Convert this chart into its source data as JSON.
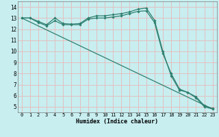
{
  "title": "",
  "xlabel": "Humidex (Indice chaleur)",
  "bg_color": "#c8eef0",
  "grid_color": "#aadddd",
  "line_color": "#2d7f6e",
  "xlim": [
    -0.5,
    23.5
  ],
  "ylim": [
    4.5,
    14.5
  ],
  "xticks": [
    0,
    1,
    2,
    3,
    4,
    5,
    6,
    7,
    8,
    9,
    10,
    11,
    12,
    13,
    14,
    15,
    16,
    17,
    18,
    19,
    20,
    21,
    22,
    23
  ],
  "yticks": [
    5,
    6,
    7,
    8,
    9,
    10,
    11,
    12,
    13,
    14
  ],
  "line1_x": [
    0,
    1,
    2,
    3,
    4,
    5,
    6,
    7,
    8,
    9,
    10,
    11,
    12,
    13,
    14,
    15,
    16,
    17,
    18,
    19,
    20,
    21,
    22,
    23
  ],
  "line1_y": [
    13.0,
    13.0,
    12.7,
    12.4,
    13.0,
    12.5,
    12.45,
    12.5,
    13.0,
    13.2,
    13.2,
    13.3,
    13.4,
    13.55,
    13.8,
    13.9,
    12.8,
    10.0,
    7.8,
    6.5,
    6.3,
    5.8,
    5.0,
    4.8
  ],
  "line2_x": [
    0,
    1,
    2,
    3,
    4,
    5,
    6,
    7,
    8,
    9,
    10,
    11,
    12,
    13,
    14,
    15,
    16,
    17,
    18,
    19,
    20,
    21,
    22,
    23
  ],
  "line2_y": [
    13.0,
    13.0,
    12.6,
    12.3,
    12.75,
    12.4,
    12.4,
    12.4,
    12.9,
    13.0,
    13.0,
    13.1,
    13.2,
    13.4,
    13.6,
    13.65,
    12.6,
    9.8,
    8.0,
    6.6,
    6.3,
    5.9,
    5.1,
    4.85
  ],
  "line3_x": [
    0,
    23
  ],
  "line3_y": [
    13.0,
    4.8
  ]
}
